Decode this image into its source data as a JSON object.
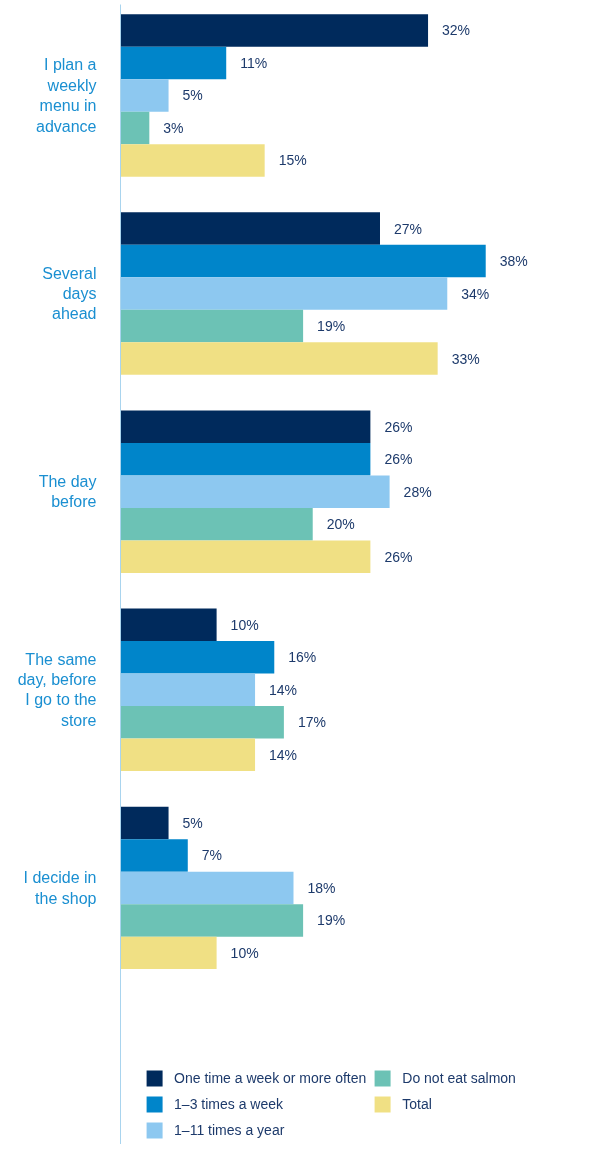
{
  "chart_data": {
    "type": "bar",
    "orientation": "horizontal",
    "categories": [
      "I plan a\nweekly\nmenu in\nadvance",
      "Several\ndays\nahead",
      "The day\nbefore",
      "The same\nday, before\nI go to the\nstore",
      "I decide in\nthe shop"
    ],
    "series": [
      {
        "name": "One time a week or more often",
        "color": "#002a5c",
        "values": [
          32,
          27,
          26,
          10,
          5
        ],
        "value_labels": [
          "32%",
          "27%",
          "26%",
          "10%",
          "5%"
        ]
      },
      {
        "name": "1–3 times a week",
        "color": "#0085ca",
        "values": [
          11,
          38,
          26,
          16,
          7
        ],
        "value_labels": [
          "11%",
          "38%",
          "26%",
          "16%",
          "7%"
        ]
      },
      {
        "name": "1–11 times a year",
        "color": "#8dc8f0",
        "values": [
          5,
          34,
          28,
          14,
          18
        ],
        "value_labels": [
          "5%",
          "34%",
          "28%",
          "14%",
          "18%"
        ]
      },
      {
        "name": "Do not eat salmon",
        "color": "#6cc2b5",
        "values": [
          3,
          19,
          20,
          17,
          19
        ],
        "value_labels": [
          "3%",
          "19%",
          "20%",
          "17%",
          "19%"
        ]
      },
      {
        "name": "Total",
        "color": "#f0e084",
        "values": [
          15,
          33,
          26,
          14,
          10
        ],
        "value_labels": [
          "15%",
          "33%",
          "26%",
          "14%",
          "10%"
        ]
      }
    ],
    "grid": false,
    "legend": "bottom"
  }
}
